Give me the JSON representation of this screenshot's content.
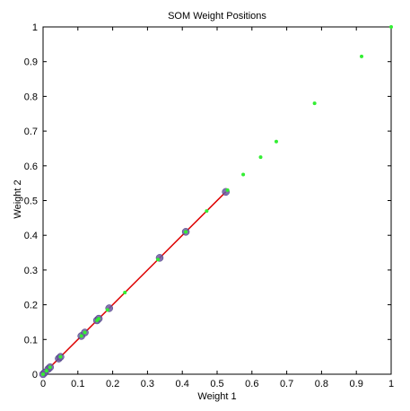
{
  "chart_data": {
    "type": "scatter",
    "title": "SOM Weight Positions",
    "xlabel": "Weight 1",
    "ylabel": "Weight 2",
    "xlim": [
      0,
      1
    ],
    "ylim": [
      0,
      1
    ],
    "xticks": [
      0,
      0.1,
      0.2,
      0.3,
      0.4,
      0.5,
      0.6,
      0.7,
      0.8,
      0.9,
      1
    ],
    "yticks": [
      0,
      0.1,
      0.2,
      0.3,
      0.4,
      0.5,
      0.6,
      0.7,
      0.8,
      0.9,
      1
    ],
    "xtick_labels": [
      "0",
      "0.1",
      "0.2",
      "0.3",
      "0.4",
      "0.5",
      "0.6",
      "0.7",
      "0.8",
      "0.9",
      "1"
    ],
    "ytick_labels": [
      "0",
      "0.1",
      "0.2",
      "0.3",
      "0.4",
      "0.5",
      "0.6",
      "0.7",
      "0.8",
      "0.9",
      "1"
    ],
    "grid": false,
    "series": [
      {
        "type": "scatter",
        "color": "#33ee33",
        "marker": "dot",
        "x": [
          0,
          0.01,
          0.02,
          0.05,
          0.11,
          0.12,
          0.155,
          0.16,
          0.185,
          0.235,
          0.33,
          0.41,
          0.47,
          0.53,
          0.575,
          0.625,
          0.67,
          0.78,
          0.915,
          1.0
        ],
        "y": [
          0,
          0.01,
          0.02,
          0.05,
          0.11,
          0.12,
          0.155,
          0.16,
          0.185,
          0.235,
          0.33,
          0.41,
          0.47,
          0.53,
          0.575,
          0.625,
          0.67,
          0.78,
          0.915,
          1.0
        ]
      },
      {
        "type": "line-markers",
        "line_color": "#dd0000",
        "marker_color": "#6a5aa0",
        "marker": "circle",
        "x": [
          0,
          0.005,
          0.015,
          0.02,
          0.045,
          0.05,
          0.11,
          0.12,
          0.155,
          0.16,
          0.19,
          0.335,
          0.41,
          0.525
        ],
        "y": [
          0,
          0.005,
          0.015,
          0.02,
          0.045,
          0.05,
          0.11,
          0.12,
          0.155,
          0.16,
          0.19,
          0.335,
          0.41,
          0.525
        ]
      }
    ]
  }
}
